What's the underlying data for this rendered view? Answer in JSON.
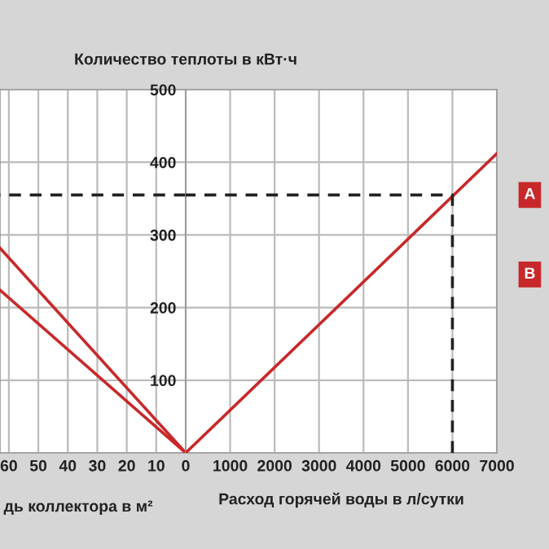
{
  "chart_data": [
    {
      "type": "line",
      "xlabel": "дь коллектора в м²",
      "xlim": [
        63,
        0
      ],
      "xticks": [
        60,
        50,
        40,
        30,
        20,
        10,
        {
          "value": 0,
          "label": null
        }
      ],
      "ylim": [
        0,
        500
      ],
      "yticks": [
        0,
        100,
        200,
        300,
        400,
        500
      ],
      "tick_labels": "x",
      "grid": true,
      "series": [
        {
          "name": "A",
          "color": "#c8282a",
          "x": [
            0,
            63
          ],
          "values": [
            0,
            282
          ]
        },
        {
          "name": "B",
          "color": "#c8282a",
          "x": [
            0,
            63
          ],
          "values": [
            0,
            224
          ]
        },
        {
          "color": "#222222",
          "x": [
            0,
            63
          ],
          "values": [
            355,
            355
          ],
          "line_style": "dashed"
        }
      ]
    },
    {
      "type": "line",
      "ylabel": "Количество теплоты в кВт·ч",
      "xlabel": "Расход горячей воды в л/сутки",
      "xlim": [
        0,
        7000
      ],
      "xticks": [
        0,
        1000,
        2000,
        3000,
        4000,
        5000,
        6000,
        7000
      ],
      "ylim": [
        0,
        500
      ],
      "yticks": [
        {
          "value": 0,
          "label": null
        },
        100,
        200,
        300,
        400,
        500
      ],
      "grid": true,
      "series": [
        {
          "color": "#c8282a",
          "x": [
            0,
            7000
          ],
          "values": [
            0,
            412
          ]
        },
        {
          "color": "#222222",
          "x": [
            6000,
            6000,
            0
          ],
          "values": [
            0,
            355,
            355
          ],
          "line_style": "dashed"
        }
      ]
    }
  ]
}
